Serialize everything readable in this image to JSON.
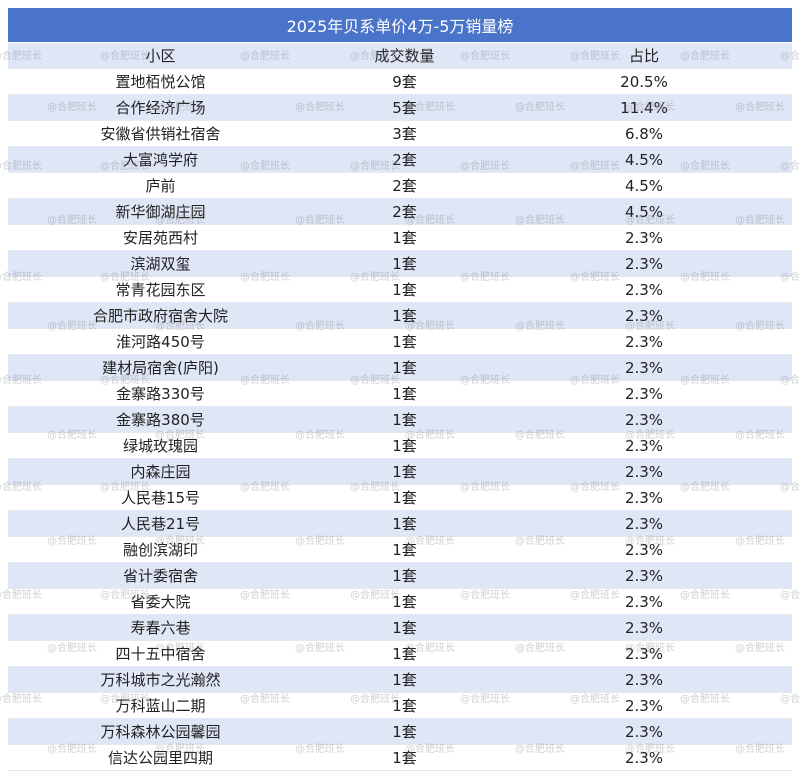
{
  "title": "2025年贝系单价4万-5万销量榜",
  "headers": [
    "小区",
    "成交数量",
    "占比"
  ],
  "rows": [
    [
      "置地栢悦公馆",
      "9套",
      "20.5%"
    ],
    [
      "合作经济广场",
      "5套",
      "11.4%"
    ],
    [
      "安徽省供销社宿舍",
      "3套",
      "6.8%"
    ],
    [
      "大富鸿学府",
      "2套",
      "4.5%"
    ],
    [
      "庐前",
      "2套",
      "4.5%"
    ],
    [
      "新华御湖庄园",
      "2套",
      "4.5%"
    ],
    [
      "安居苑西村",
      "1套",
      "2.3%"
    ],
    [
      "滨湖双玺",
      "1套",
      "2.3%"
    ],
    [
      "常青花园东区",
      "1套",
      "2.3%"
    ],
    [
      "合肥市政府宿舍大院",
      "1套",
      "2.3%"
    ],
    [
      "淮河路450号",
      "1套",
      "2.3%"
    ],
    [
      "建材局宿舍(庐阳)",
      "1套",
      "2.3%"
    ],
    [
      "金寨路330号",
      "1套",
      "2.3%"
    ],
    [
      "金寨路380号",
      "1套",
      "2.3%"
    ],
    [
      "绿城玫瑰园",
      "1套",
      "2.3%"
    ],
    [
      "内森庄园",
      "1套",
      "2.3%"
    ],
    [
      "人民巷15号",
      "1套",
      "2.3%"
    ],
    [
      "人民巷21号",
      "1套",
      "2.3%"
    ],
    [
      "融创滨湖印",
      "1套",
      "2.3%"
    ],
    [
      "省计委宿舍",
      "1套",
      "2.3%"
    ],
    [
      "省委大院",
      "1套",
      "2.3%"
    ],
    [
      "寿春六巷",
      "1套",
      "2.3%"
    ],
    [
      "四十五中宿舍",
      "1套",
      "2.3%"
    ],
    [
      "万科城市之光瀚然",
      "1套",
      "2.3%"
    ],
    [
      "万科蓝山二期",
      "1套",
      "2.3%"
    ],
    [
      "万科森林公园馨园",
      "1套",
      "2.3%"
    ],
    [
      "信达公园里四期",
      "1套",
      "2.3%"
    ]
  ],
  "watermark": "@合肥班长",
  "colors": {
    "header_bg": "#4a74c9",
    "stripe": "#dfe6f6"
  }
}
